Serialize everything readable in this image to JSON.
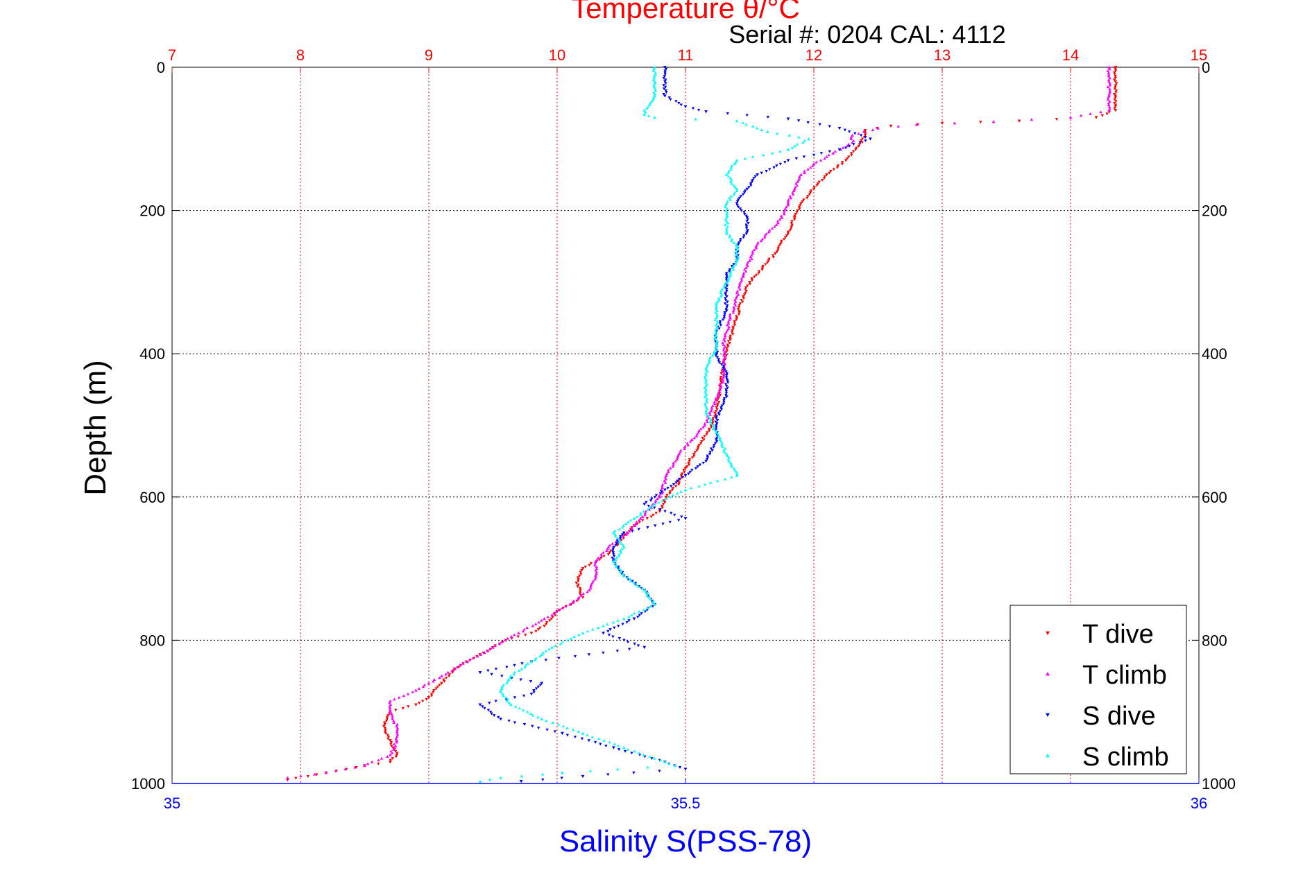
{
  "chart_data": {
    "type": "scatter",
    "title": "Temperature θ/°C",
    "subtitle": "Serial #: 0204  CAL: 4112",
    "ylabel": "Depth (m)",
    "xlabel": "Salinity S(PSS-78)",
    "y_reversed": true,
    "ylim": [
      0,
      1000
    ],
    "y_ticks": [
      "0",
      "200",
      "400",
      "600",
      "800",
      "1000"
    ],
    "temperature_axis": {
      "position": "top",
      "range": [
        7,
        15
      ],
      "ticks": [
        "7",
        "8",
        "9",
        "10",
        "11",
        "12",
        "13",
        "14",
        "15"
      ],
      "color": "#ff0000"
    },
    "salinity_axis": {
      "position": "bottom",
      "range": [
        35,
        36
      ],
      "ticks": [
        "35",
        "35.5",
        "36"
      ],
      "color": "#0000ff"
    },
    "grid": true,
    "legend_position": "bottom-right",
    "series": [
      {
        "name": "T dive",
        "axis": "temperature",
        "color": "#ff0000",
        "marker": "triangle-down",
        "points": [
          [
            14.35,
            0
          ],
          [
            14.35,
            20
          ],
          [
            14.35,
            40
          ],
          [
            14.35,
            60
          ],
          [
            14.2,
            70
          ],
          [
            13.6,
            75
          ],
          [
            13.0,
            78
          ],
          [
            12.6,
            82
          ],
          [
            12.4,
            88
          ],
          [
            12.4,
            95
          ],
          [
            12.35,
            110
          ],
          [
            12.25,
            130
          ],
          [
            12.1,
            150
          ],
          [
            12.0,
            170
          ],
          [
            11.9,
            190
          ],
          [
            11.85,
            210
          ],
          [
            11.8,
            230
          ],
          [
            11.7,
            260
          ],
          [
            11.6,
            280
          ],
          [
            11.5,
            300
          ],
          [
            11.45,
            320
          ],
          [
            11.4,
            350
          ],
          [
            11.35,
            380
          ],
          [
            11.3,
            410
          ],
          [
            11.28,
            440
          ],
          [
            11.25,
            470
          ],
          [
            11.2,
            500
          ],
          [
            11.1,
            530
          ],
          [
            11.0,
            560
          ],
          [
            10.95,
            580
          ],
          [
            10.85,
            600
          ],
          [
            10.8,
            620
          ],
          [
            10.6,
            640
          ],
          [
            10.5,
            660
          ],
          [
            10.4,
            680
          ],
          [
            10.2,
            700
          ],
          [
            10.15,
            720
          ],
          [
            10.2,
            740
          ],
          [
            10.0,
            760
          ],
          [
            9.9,
            780
          ],
          [
            9.8,
            790
          ],
          [
            9.6,
            800
          ],
          [
            9.4,
            820
          ],
          [
            9.2,
            840
          ],
          [
            9.1,
            860
          ],
          [
            9.0,
            880
          ],
          [
            8.9,
            890
          ],
          [
            8.7,
            900
          ],
          [
            8.65,
            920
          ],
          [
            8.7,
            940
          ],
          [
            8.75,
            960
          ],
          [
            8.7,
            970
          ],
          [
            8.5,
            975
          ],
          [
            8.2,
            985
          ],
          [
            7.9,
            995
          ]
        ]
      },
      {
        "name": "T climb",
        "axis": "temperature",
        "color": "#ff00ff",
        "marker": "triangle-up",
        "points": [
          [
            14.3,
            0
          ],
          [
            14.3,
            20
          ],
          [
            14.3,
            40
          ],
          [
            14.3,
            60
          ],
          [
            14.0,
            70
          ],
          [
            13.4,
            76
          ],
          [
            12.8,
            80
          ],
          [
            12.5,
            85
          ],
          [
            12.3,
            95
          ],
          [
            12.3,
            105
          ],
          [
            12.15,
            120
          ],
          [
            12.0,
            135
          ],
          [
            11.9,
            150
          ],
          [
            11.85,
            170
          ],
          [
            11.8,
            190
          ],
          [
            11.75,
            210
          ],
          [
            11.65,
            230
          ],
          [
            11.55,
            250
          ],
          [
            11.5,
            270
          ],
          [
            11.45,
            290
          ],
          [
            11.4,
            320
          ],
          [
            11.35,
            350
          ],
          [
            11.3,
            380
          ],
          [
            11.3,
            400
          ],
          [
            11.3,
            430
          ],
          [
            11.25,
            460
          ],
          [
            11.2,
            480
          ],
          [
            11.15,
            500
          ],
          [
            11.05,
            520
          ],
          [
            10.95,
            540
          ],
          [
            10.85,
            570
          ],
          [
            10.8,
            600
          ],
          [
            10.65,
            630
          ],
          [
            10.55,
            650
          ],
          [
            10.4,
            670
          ],
          [
            10.3,
            690
          ],
          [
            10.3,
            710
          ],
          [
            10.25,
            730
          ],
          [
            10.1,
            750
          ],
          [
            9.9,
            770
          ],
          [
            9.7,
            790
          ],
          [
            9.5,
            810
          ],
          [
            9.3,
            830
          ],
          [
            9.1,
            850
          ],
          [
            9.0,
            860
          ],
          [
            8.9,
            870
          ],
          [
            8.7,
            885
          ],
          [
            8.7,
            900
          ],
          [
            8.75,
            920
          ],
          [
            8.75,
            940
          ],
          [
            8.7,
            960
          ],
          [
            8.5,
            975
          ],
          [
            8.2,
            985
          ],
          [
            7.9,
            992
          ]
        ]
      },
      {
        "name": "S dive",
        "axis": "salinity",
        "color": "#0000ff",
        "marker": "triangle-down",
        "points": [
          [
            35.48,
            0
          ],
          [
            35.48,
            20
          ],
          [
            35.48,
            40
          ],
          [
            35.5,
            55
          ],
          [
            35.52,
            62
          ],
          [
            35.6,
            72
          ],
          [
            35.65,
            85
          ],
          [
            35.68,
            100
          ],
          [
            35.65,
            115
          ],
          [
            35.6,
            130
          ],
          [
            35.57,
            150
          ],
          [
            35.56,
            170
          ],
          [
            35.55,
            190
          ],
          [
            35.56,
            210
          ],
          [
            35.56,
            230
          ],
          [
            35.55,
            250
          ],
          [
            35.55,
            270
          ],
          [
            35.54,
            290
          ],
          [
            35.54,
            310
          ],
          [
            35.54,
            340
          ],
          [
            35.53,
            370
          ],
          [
            35.53,
            400
          ],
          [
            35.54,
            430
          ],
          [
            35.54,
            460
          ],
          [
            35.53,
            490
          ],
          [
            35.53,
            520
          ],
          [
            35.52,
            550
          ],
          [
            35.5,
            570
          ],
          [
            35.48,
            590
          ],
          [
            35.46,
            610
          ],
          [
            35.5,
            630
          ],
          [
            35.44,
            650
          ],
          [
            35.43,
            670
          ],
          [
            35.43,
            690
          ],
          [
            35.44,
            710
          ],
          [
            35.46,
            730
          ],
          [
            35.47,
            750
          ],
          [
            35.45,
            770
          ],
          [
            35.42,
            790
          ],
          [
            35.46,
            810
          ],
          [
            35.35,
            830
          ],
          [
            35.3,
            845
          ],
          [
            35.36,
            860
          ],
          [
            35.35,
            875
          ],
          [
            35.3,
            890
          ],
          [
            35.32,
            910
          ],
          [
            35.38,
            930
          ],
          [
            35.43,
            950
          ],
          [
            35.48,
            970
          ],
          [
            35.5,
            980
          ],
          [
            35.4,
            990
          ],
          [
            35.34,
            997
          ]
        ]
      },
      {
        "name": "S climb",
        "axis": "salinity",
        "color": "#00ffff",
        "marker": "triangle-up",
        "points": [
          [
            35.47,
            0
          ],
          [
            35.47,
            20
          ],
          [
            35.47,
            40
          ],
          [
            35.46,
            60
          ],
          [
            35.46,
            66
          ],
          [
            35.47,
            70
          ],
          [
            35.55,
            75
          ],
          [
            35.58,
            90
          ],
          [
            35.62,
            100
          ],
          [
            35.6,
            115
          ],
          [
            35.55,
            130
          ],
          [
            35.54,
            150
          ],
          [
            35.55,
            170
          ],
          [
            35.54,
            190
          ],
          [
            35.54,
            210
          ],
          [
            35.54,
            230
          ],
          [
            35.55,
            250
          ],
          [
            35.55,
            270
          ],
          [
            35.54,
            300
          ],
          [
            35.53,
            330
          ],
          [
            35.53,
            360
          ],
          [
            35.53,
            390
          ],
          [
            35.52,
            420
          ],
          [
            35.52,
            450
          ],
          [
            35.52,
            480
          ],
          [
            35.53,
            510
          ],
          [
            35.54,
            540
          ],
          [
            35.55,
            570
          ],
          [
            35.5,
            590
          ],
          [
            35.47,
            610
          ],
          [
            35.45,
            630
          ],
          [
            35.43,
            650
          ],
          [
            35.44,
            670
          ],
          [
            35.43,
            690
          ],
          [
            35.44,
            710
          ],
          [
            35.46,
            730
          ],
          [
            35.47,
            750
          ],
          [
            35.44,
            770
          ],
          [
            35.4,
            790
          ],
          [
            35.37,
            810
          ],
          [
            35.35,
            830
          ],
          [
            35.33,
            850
          ],
          [
            35.32,
            870
          ],
          [
            35.33,
            890
          ],
          [
            35.36,
            910
          ],
          [
            35.4,
            930
          ],
          [
            35.44,
            950
          ],
          [
            35.48,
            970
          ],
          [
            35.49,
            975
          ],
          [
            35.38,
            985
          ],
          [
            35.32,
            992
          ],
          [
            35.3,
            997
          ]
        ]
      }
    ]
  }
}
